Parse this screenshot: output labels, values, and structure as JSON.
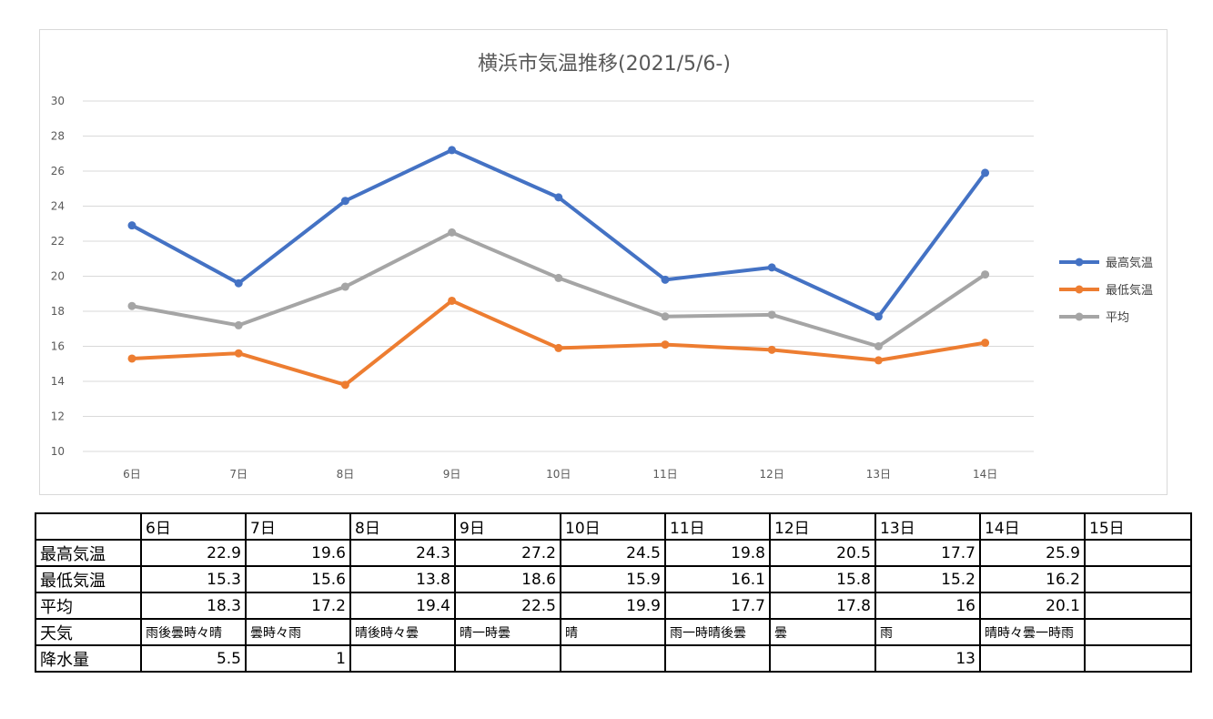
{
  "chart_data": {
    "type": "line",
    "title": "横浜市気温推移(2021/5/6-)",
    "categories": [
      "6日",
      "7日",
      "8日",
      "9日",
      "10日",
      "11日",
      "12日",
      "13日",
      "14日"
    ],
    "ylim": [
      10,
      30
    ],
    "yticks": [
      "10",
      "12",
      "14",
      "16",
      "18",
      "20",
      "22",
      "24",
      "26",
      "28",
      "30"
    ],
    "grid": true,
    "legend_position": "right",
    "series": [
      {
        "name": "最高気温",
        "color": "#4472C4",
        "values": [
          22.9,
          19.6,
          24.3,
          27.2,
          24.5,
          19.8,
          20.5,
          17.7,
          25.9
        ]
      },
      {
        "name": "最低気温",
        "color": "#ED7D31",
        "values": [
          15.3,
          15.6,
          13.8,
          18.6,
          15.9,
          16.1,
          15.8,
          15.2,
          16.2
        ]
      },
      {
        "name": "平均",
        "color": "#A5A5A5",
        "values": [
          18.3,
          17.2,
          19.4,
          22.5,
          19.9,
          17.7,
          17.8,
          16.0,
          20.1
        ]
      }
    ]
  },
  "table": {
    "header": [
      "",
      "6日",
      "7日",
      "8日",
      "9日",
      "10日",
      "11日",
      "12日",
      "13日",
      "14日",
      "15日"
    ],
    "rows": [
      {
        "label": "最高気温",
        "kind": "num",
        "cells": [
          "22.9",
          "19.6",
          "24.3",
          "27.2",
          "24.5",
          "19.8",
          "20.5",
          "17.7",
          "25.9",
          ""
        ]
      },
      {
        "label": "最低気温",
        "kind": "num",
        "cells": [
          "15.3",
          "15.6",
          "13.8",
          "18.6",
          "15.9",
          "16.1",
          "15.8",
          "15.2",
          "16.2",
          ""
        ]
      },
      {
        "label": "平均",
        "kind": "num",
        "cells": [
          "18.3",
          "17.2",
          "19.4",
          "22.5",
          "19.9",
          "17.7",
          "17.8",
          "16",
          "20.1",
          ""
        ]
      },
      {
        "label": "天気",
        "kind": "weather",
        "cells": [
          "雨後曇時々晴",
          "曇時々雨",
          "晴後時々曇",
          "晴一時曇",
          "晴",
          "雨一時晴後曇",
          "曇",
          "雨",
          "晴時々曇一時雨",
          ""
        ]
      },
      {
        "label": "降水量",
        "kind": "num",
        "cells": [
          "5.5",
          "1",
          "",
          "",
          "",
          "",
          "",
          "13",
          "",
          ""
        ]
      }
    ]
  }
}
